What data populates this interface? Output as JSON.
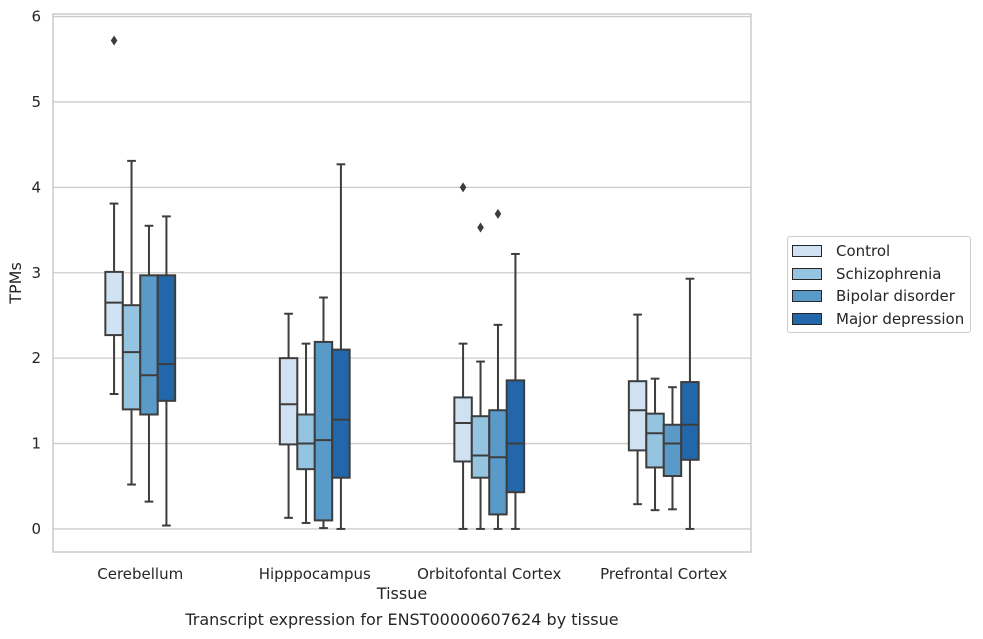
{
  "chart_data": {
    "type": "box",
    "title": "Transcript expression for ENST00000607624 by tissue",
    "xlabel": "Tissue",
    "ylabel": "TPMs",
    "ylim": [
      -0.27,
      6.03
    ],
    "yticks": [
      "0",
      "1",
      "2",
      "3",
      "4",
      "5",
      "6"
    ],
    "grid": true,
    "legend_position": "right",
    "categories": [
      "Cerebellum",
      "Hipppocampus",
      "Orbitofontal Cortex",
      "Prefrontal Cortex"
    ],
    "series": [
      {
        "name": "Control",
        "color": "#d0e1f2",
        "boxes": [
          {
            "whisker_low": 1.58,
            "q1": 2.27,
            "median": 2.65,
            "q3": 3.01,
            "whisker_high": 3.81,
            "outliers": [
              5.72
            ]
          },
          {
            "whisker_low": 0.13,
            "q1": 0.99,
            "median": 1.46,
            "q3": 2.0,
            "whisker_high": 2.52,
            "outliers": []
          },
          {
            "whisker_low": 0.0,
            "q1": 0.79,
            "median": 1.24,
            "q3": 1.54,
            "whisker_high": 2.17,
            "outliers": [
              4.0
            ]
          },
          {
            "whisker_low": 0.29,
            "q1": 0.92,
            "median": 1.39,
            "q3": 1.73,
            "whisker_high": 2.51,
            "outliers": []
          }
        ]
      },
      {
        "name": "Schizophrenia",
        "color": "#94c4df",
        "boxes": [
          {
            "whisker_low": 0.52,
            "q1": 1.4,
            "median": 2.07,
            "q3": 2.62,
            "whisker_high": 4.31,
            "outliers": []
          },
          {
            "whisker_low": 0.07,
            "q1": 0.7,
            "median": 1.0,
            "q3": 1.34,
            "whisker_high": 2.17,
            "outliers": []
          },
          {
            "whisker_low": 0.0,
            "q1": 0.6,
            "median": 0.86,
            "q3": 1.32,
            "whisker_high": 1.96,
            "outliers": [
              3.53
            ]
          },
          {
            "whisker_low": 0.22,
            "q1": 0.72,
            "median": 1.12,
            "q3": 1.35,
            "whisker_high": 1.76,
            "outliers": []
          }
        ]
      },
      {
        "name": "Bipolar disorder",
        "color": "#5a9ac8",
        "boxes": [
          {
            "whisker_low": 0.32,
            "q1": 1.34,
            "median": 1.8,
            "q3": 2.97,
            "whisker_high": 3.55,
            "outliers": []
          },
          {
            "whisker_low": 0.01,
            "q1": 0.1,
            "median": 1.04,
            "q3": 2.19,
            "whisker_high": 2.71,
            "outliers": []
          },
          {
            "whisker_low": 0.0,
            "q1": 0.17,
            "median": 0.84,
            "q3": 1.39,
            "whisker_high": 2.39,
            "outliers": [
              3.69
            ]
          },
          {
            "whisker_low": 0.23,
            "q1": 0.62,
            "median": 1.0,
            "q3": 1.22,
            "whisker_high": 1.66,
            "outliers": []
          }
        ]
      },
      {
        "name": "Major depression",
        "color": "#2367ab",
        "boxes": [
          {
            "whisker_low": 0.04,
            "q1": 1.5,
            "median": 1.93,
            "q3": 2.97,
            "whisker_high": 3.66,
            "outliers": []
          },
          {
            "whisker_low": 0.0,
            "q1": 0.6,
            "median": 1.28,
            "q3": 2.1,
            "whisker_high": 4.27,
            "outliers": []
          },
          {
            "whisker_low": 0.0,
            "q1": 0.43,
            "median": 1.0,
            "q3": 1.74,
            "whisker_high": 3.22,
            "outliers": []
          },
          {
            "whisker_low": 0.0,
            "q1": 0.81,
            "median": 1.22,
            "q3": 1.72,
            "whisker_high": 2.93,
            "outliers": []
          }
        ]
      }
    ]
  },
  "colors": {
    "grid": "#cccccc",
    "frame": "#cccccc",
    "box_edge": "#3d3d3d"
  }
}
